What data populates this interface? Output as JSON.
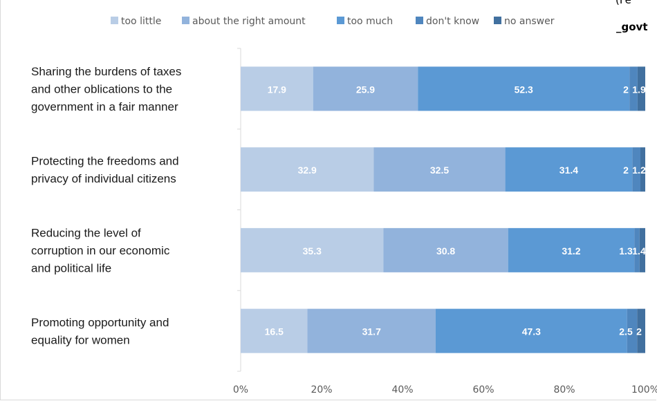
{
  "corner_text": {
    "line1": "(Fe",
    "line2": "_govt"
  },
  "chart_data": {
    "type": "bar",
    "orientation": "horizontal",
    "stacked": "percent",
    "categories": [
      "Sharing the burdens of taxes and other oblications to the government in a fair manner",
      "Protecting the freedoms and privacy of individual citizens",
      "Reducing the level of corruption in our economic and political life",
      "Promoting opportunity and equality for women"
    ],
    "series": [
      {
        "name": "too little",
        "color": "#b9cde6",
        "values": [
          17.9,
          32.9,
          35.3,
          16.5
        ],
        "labels": [
          "17.9",
          "32.9",
          "35.3",
          "16.5"
        ]
      },
      {
        "name": "about the right amount",
        "color": "#92b3dc",
        "values": [
          25.9,
          32.5,
          30.8,
          31.7
        ],
        "labels": [
          "25.9",
          "32.5",
          "30.8",
          "31.7"
        ]
      },
      {
        "name": "too much",
        "color": "#5b99d4",
        "values": [
          52.3,
          31.4,
          31.2,
          47.3
        ],
        "labels": [
          "52.3",
          "31.4",
          "31.2",
          "47.3"
        ]
      },
      {
        "name": "don't know",
        "color": "#4f86be",
        "values": [
          2,
          2,
          1.3,
          2.5
        ],
        "labels": [
          "2",
          "2",
          "1.3",
          "2.5"
        ]
      },
      {
        "name": "no answer",
        "color": "#41709f",
        "values": [
          1.9,
          1.2,
          1.4,
          2
        ],
        "labels": [
          "1.9",
          "1.2",
          "1.4",
          "2"
        ]
      }
    ],
    "xticks": [
      "0%",
      "20%",
      "40%",
      "60%",
      "80%",
      "100%"
    ],
    "xlim": [
      0,
      100
    ],
    "legend": "top",
    "grid": false
  }
}
